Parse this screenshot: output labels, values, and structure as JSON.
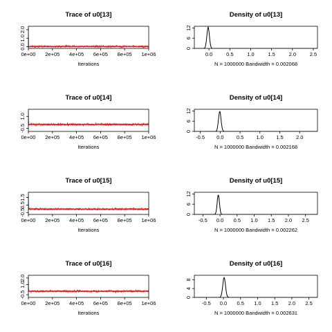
{
  "chart_data": [
    {
      "type": "line",
      "title": "Trace of u0[13]",
      "xlabel": "Iterations",
      "xlim": [
        0,
        1000000
      ],
      "ylim": [
        -0.2,
        2.4
      ],
      "xtick_values": [
        0,
        200000,
        400000,
        600000,
        800000,
        1000000
      ],
      "xtick_labels": [
        "0e+00",
        "2e+05",
        "4e+05",
        "6e+05",
        "8e+05",
        "1e+06"
      ],
      "ytick_values": [
        0.0,
        1.0,
        2.0
      ],
      "ytick_labels": [
        "0.0",
        "1.0",
        "2.0"
      ],
      "series": [
        {
          "color": "#e41a1c",
          "burn_in_peak": 2.2,
          "level": 0.03,
          "spread": 0.06
        }
      ]
    },
    {
      "type": "line",
      "title": "Density of u0[13]",
      "xlabel": "N = 1000000   Bandwidth = 0.002068",
      "xlim": [
        -0.35,
        2.6
      ],
      "ylim": [
        0,
        13
      ],
      "xtick_values": [
        0.0,
        0.5,
        1.0,
        1.5,
        2.0,
        2.5
      ],
      "xtick_labels": [
        "0.0",
        "0.5",
        "1.0",
        "1.5",
        "2.0",
        "2.5"
      ],
      "ytick_values": [
        0,
        6,
        12
      ],
      "ytick_labels": [
        "0",
        "6",
        "12"
      ],
      "series": [
        {
          "color": "#000000",
          "mean": -0.02,
          "sd": 0.03,
          "peak": 12.5
        }
      ]
    },
    {
      "type": "line",
      "title": "Trace of u0[14]",
      "xlabel": "Iterations",
      "xlim": [
        0,
        1000000
      ],
      "ylim": [
        -0.9,
        1.9
      ],
      "xtick_values": [
        0,
        200000,
        400000,
        600000,
        800000,
        1000000
      ],
      "xtick_labels": [
        "0e+00",
        "2e+05",
        "4e+05",
        "6e+05",
        "8e+05",
        "1e+06"
      ],
      "ytick_values": [
        -0.5,
        1.0
      ],
      "ytick_labels": [
        "-0.5",
        "1.0"
      ],
      "series": [
        {
          "color": "#e41a1c",
          "burn_in_peak": 1.7,
          "level": -0.02,
          "spread": 0.07
        }
      ]
    },
    {
      "type": "line",
      "title": "Density of u0[14]",
      "xlabel": "N = 1000000   Bandwidth = 0.002168",
      "xlim": [
        -0.65,
        2.45
      ],
      "ylim": [
        0,
        13
      ],
      "xtick_values": [
        -0.5,
        0.0,
        0.5,
        1.0,
        1.5,
        2.0
      ],
      "xtick_labels": [
        "-0.5",
        "0.0",
        "0.5",
        "1.0",
        "1.5",
        "2.0"
      ],
      "ytick_values": [
        0,
        6,
        12
      ],
      "ytick_labels": [
        "0",
        "6",
        "12"
      ],
      "series": [
        {
          "color": "#000000",
          "mean": -0.01,
          "sd": 0.032,
          "peak": 11.8
        }
      ]
    },
    {
      "type": "line",
      "title": "Trace of u0[15]",
      "xlabel": "Iterations",
      "xlim": [
        0,
        1000000
      ],
      "ylim": [
        -0.75,
        2.2
      ],
      "xtick_values": [
        0,
        200000,
        400000,
        600000,
        800000,
        1000000
      ],
      "xtick_labels": [
        "0e+00",
        "2e+05",
        "4e+05",
        "6e+05",
        "8e+05",
        "1e+06"
      ],
      "ytick_values": [
        -0.5,
        0.5,
        1.5
      ],
      "ytick_labels": [
        "-0.5",
        "0.5",
        "1.5"
      ],
      "series": [
        {
          "color": "#e41a1c",
          "burn_in_peak": 2.0,
          "level": -0.04,
          "spread": 0.07
        }
      ]
    },
    {
      "type": "line",
      "title": "Density of u0[15]",
      "xlabel": "N = 1000000   Bandwidth = 0.002262",
      "xlim": [
        -0.75,
        2.85
      ],
      "ylim": [
        0,
        13
      ],
      "xtick_values": [
        -0.5,
        0.0,
        0.5,
        1.0,
        1.5,
        2.0,
        2.5
      ],
      "xtick_labels": [
        "-0.5",
        "0.0",
        "0.5",
        "1.0",
        "1.5",
        "2.0",
        "2.5"
      ],
      "ytick_values": [
        0,
        6,
        12
      ],
      "ytick_labels": [
        "0",
        "6",
        "12"
      ],
      "series": [
        {
          "color": "#000000",
          "mean": -0.05,
          "sd": 0.033,
          "peak": 11.5
        }
      ]
    },
    {
      "type": "line",
      "title": "Trace of u0[16]",
      "xlabel": "Iterations",
      "xlim": [
        0,
        1000000
      ],
      "ylim": [
        -0.9,
        2.4
      ],
      "xtick_values": [
        0,
        200000,
        400000,
        600000,
        800000,
        1000000
      ],
      "xtick_labels": [
        "0e+00",
        "2e+05",
        "4e+05",
        "6e+05",
        "8e+05",
        "1e+06"
      ],
      "ytick_values": [
        -0.5,
        1.0,
        2.0
      ],
      "ytick_labels": [
        "-0.5",
        "1.0",
        "2.0"
      ],
      "series": [
        {
          "color": "#e41a1c",
          "burn_in_peak": 2.1,
          "level": 0.02,
          "spread": 0.08
        }
      ]
    },
    {
      "type": "line",
      "title": "Density of u0[16]",
      "xlabel": "N = 1000000   Bandwidth = 0.002631",
      "xlim": [
        -0.85,
        2.75
      ],
      "ylim": [
        0,
        10
      ],
      "xtick_values": [
        -0.5,
        0.0,
        0.5,
        1.0,
        1.5,
        2.0,
        2.5
      ],
      "xtick_labels": [
        "-0.5",
        "0.0",
        "0.5",
        "1.0",
        "1.5",
        "2.0",
        "2.5"
      ],
      "ytick_values": [
        0,
        4,
        8
      ],
      "ytick_labels": [
        "0",
        "4",
        "8"
      ],
      "series": [
        {
          "color": "#000000",
          "mean": 0.02,
          "sd": 0.04,
          "peak": 9.0
        }
      ]
    }
  ]
}
